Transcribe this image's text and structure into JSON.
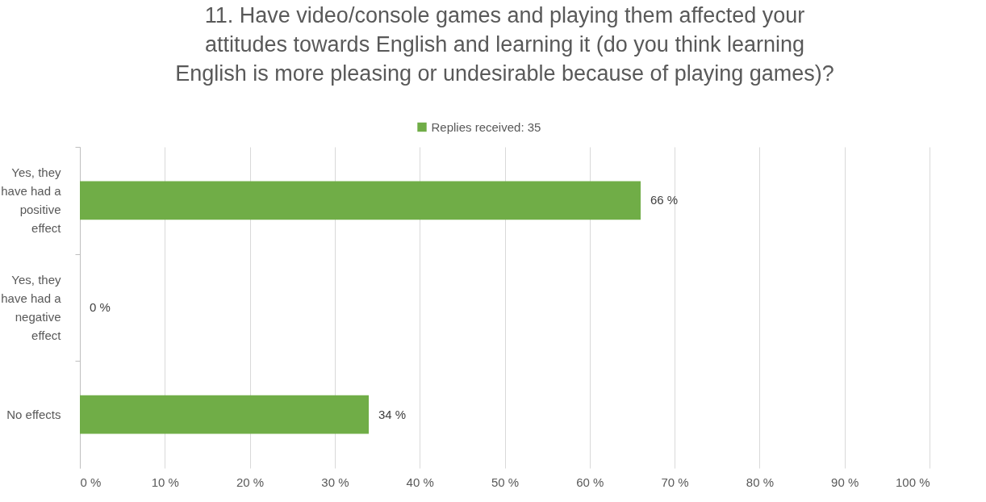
{
  "chart_data": {
    "type": "bar",
    "orientation": "horizontal",
    "title": "11. Have video/console games and playing them affected your attitudes towards English and learning it (do you think learning English is more pleasing or undesirable because of playing games)?",
    "categories": [
      "Yes, they have had a positive effect",
      "Yes, they have had a negative effect",
      "No effects"
    ],
    "series": [
      {
        "name": "Replies received: 35",
        "color": "#70ad47",
        "values": [
          66,
          0,
          34
        ],
        "value_labels": [
          "66 %",
          "0 %",
          "34 %"
        ]
      }
    ],
    "xlim": [
      0,
      100
    ],
    "xticks": [
      {
        "value": 0,
        "label": "0 %"
      },
      {
        "value": 10,
        "label": "10 %"
      },
      {
        "value": 20,
        "label": "20 %"
      },
      {
        "value": 30,
        "label": "30 %"
      },
      {
        "value": 40,
        "label": "40 %"
      },
      {
        "value": 50,
        "label": "50 %"
      },
      {
        "value": 60,
        "label": "60 %"
      },
      {
        "value": 70,
        "label": "70 %"
      },
      {
        "value": 80,
        "label": "80 %"
      },
      {
        "value": 90,
        "label": "90 %"
      },
      {
        "value": 100,
        "label": "100 %"
      }
    ],
    "grid": "x",
    "legend": "top"
  }
}
